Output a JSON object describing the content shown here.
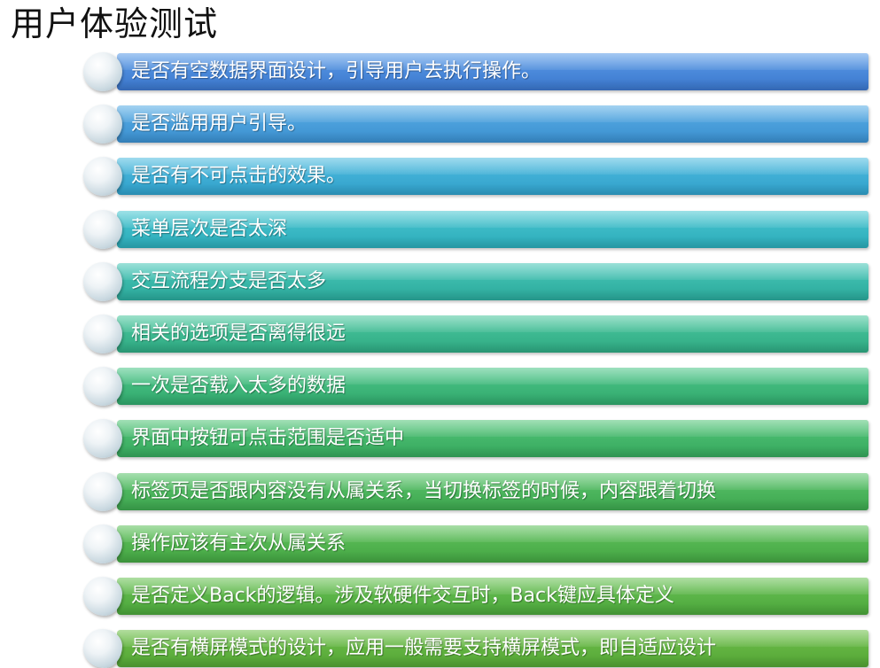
{
  "title": "用户体验测试",
  "items": [
    {
      "text": "是否有空数据界面设计，引导用户去执行操作。",
      "color_top": "#5b9ce8",
      "color_bottom": "#3a76cc"
    },
    {
      "text": "是否滥用用户引导。",
      "color_top": "#5aaee6",
      "color_bottom": "#3a8fcf"
    },
    {
      "text": "是否有不可点击的效果。",
      "color_top": "#50bde0",
      "color_bottom": "#2f9fc9"
    },
    {
      "text": "菜单层次是否太深",
      "color_top": "#4cc8d2",
      "color_bottom": "#2aaab8"
    },
    {
      "text": "交互流程分支是否太多",
      "color_top": "#49c7b8",
      "color_bottom": "#2aa99b"
    },
    {
      "text": "相关的选项是否离得很远",
      "color_top": "#4cc89f",
      "color_bottom": "#2ea982"
    },
    {
      "text": "一次是否载入太多的数据",
      "color_top": "#4fc78a",
      "color_bottom": "#30a86c"
    },
    {
      "text": "界面中按钮可点击范围是否适中",
      "color_top": "#54c67a",
      "color_bottom": "#35a75c"
    },
    {
      "text": "标签页是否跟内容没有从属关系，当切换标签的时候，内容跟着切换",
      "color_top": "#5cc46c",
      "color_bottom": "#3ca64e"
    },
    {
      "text": "操作应该有主次从属关系",
      "color_top": "#62c35e",
      "color_bottom": "#43a542"
    },
    {
      "text": "是否定义Back的逻辑。涉及软硬件交互时，Back键应具体定义",
      "color_top": "#6cc356",
      "color_bottom": "#4aa53a"
    },
    {
      "text": "是否有横屏模式的设计，应用一般需要支持横屏模式，即自适应设计",
      "color_top": "#72c24e",
      "color_bottom": "#52a434"
    }
  ]
}
